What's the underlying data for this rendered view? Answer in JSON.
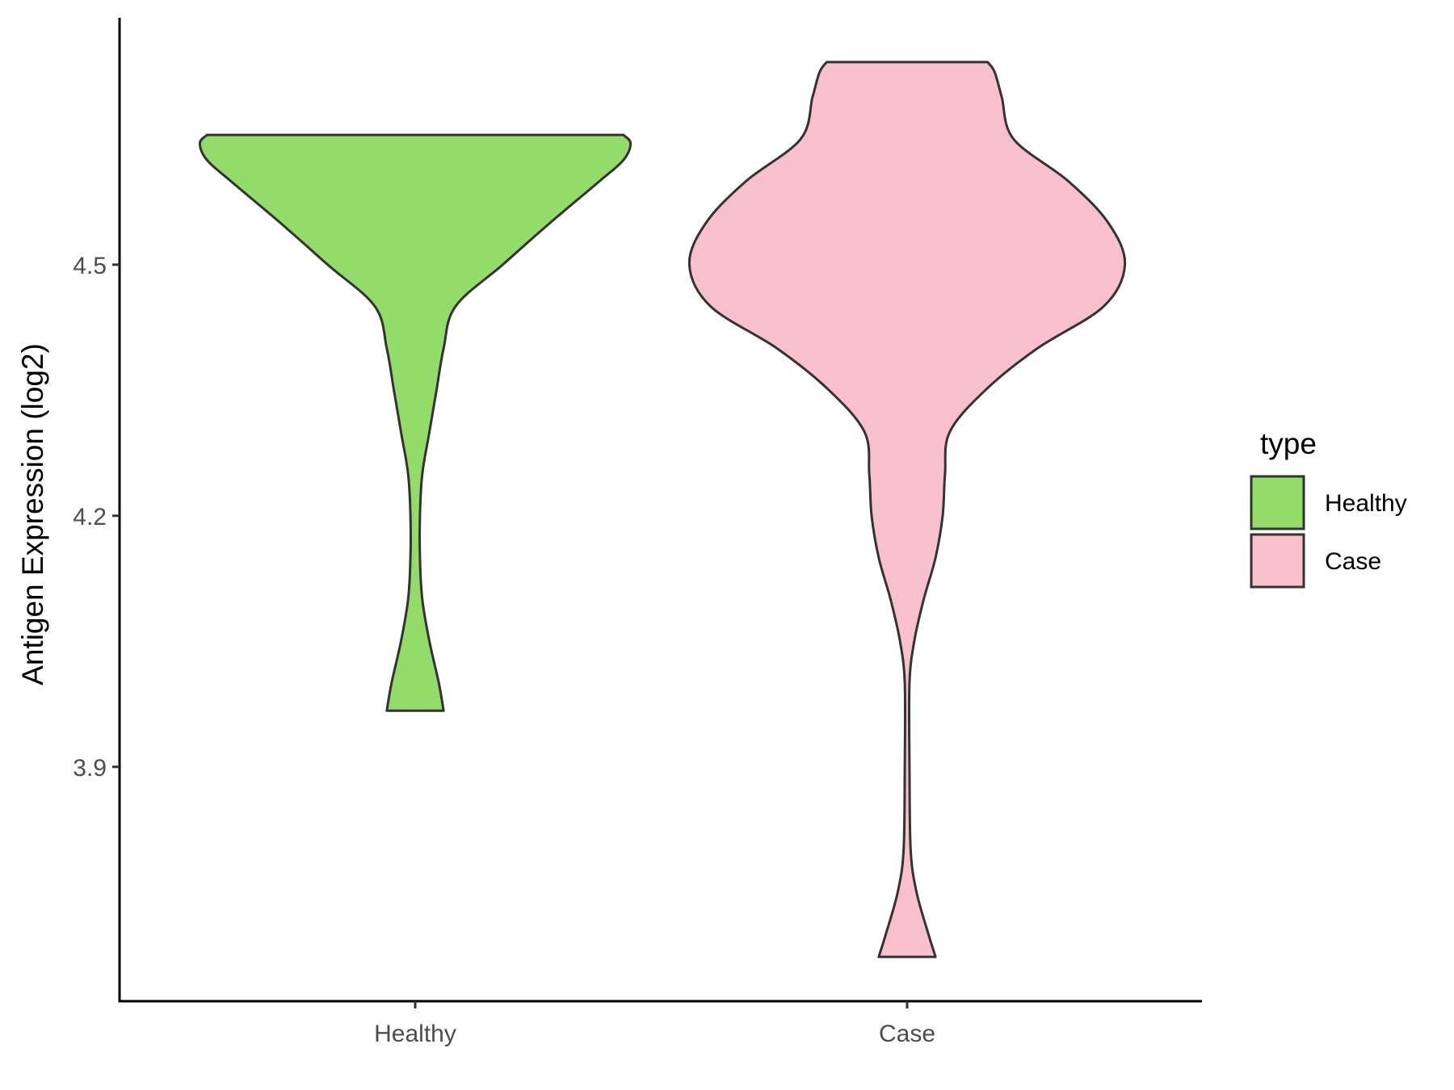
{
  "chart_data": {
    "type": "violin",
    "title": "",
    "xlabel": "",
    "ylabel": "Antigen Expression (log2)",
    "categories": [
      "Healthy",
      "Case"
    ],
    "ylim": [
      3.62,
      4.795
    ],
    "yticks": [
      3.9,
      4.2,
      4.5
    ],
    "ytick_labels": [
      "3.9",
      "4.2",
      "4.5"
    ],
    "grid": false,
    "legend": {
      "title": "type",
      "position": "right",
      "entries": [
        "Healthy",
        "Case"
      ]
    },
    "series": [
      {
        "name": "Healthy",
        "color": "#93dc6a",
        "min": 3.967,
        "max": 4.655,
        "density_profile": [
          [
            4.655,
            0.88
          ],
          [
            4.645,
            0.91
          ],
          [
            4.625,
            0.88
          ],
          [
            4.6,
            0.78
          ],
          [
            4.55,
            0.57
          ],
          [
            4.5,
            0.37
          ],
          [
            4.45,
            0.17
          ],
          [
            4.4,
            0.12
          ],
          [
            4.35,
            0.09
          ],
          [
            4.3,
            0.06
          ],
          [
            4.25,
            0.03
          ],
          [
            4.2,
            0.02
          ],
          [
            4.15,
            0.02
          ],
          [
            4.1,
            0.03
          ],
          [
            4.05,
            0.06
          ],
          [
            4.0,
            0.1
          ],
          [
            3.967,
            0.12
          ]
        ]
      },
      {
        "name": "Case",
        "color": "#f8c0cc",
        "min": 3.673,
        "max": 4.742,
        "density_profile": [
          [
            4.742,
            0.34
          ],
          [
            4.73,
            0.37
          ],
          [
            4.7,
            0.4
          ],
          [
            4.65,
            0.45
          ],
          [
            4.6,
            0.68
          ],
          [
            4.55,
            0.85
          ],
          [
            4.5,
            0.92
          ],
          [
            4.45,
            0.83
          ],
          [
            4.4,
            0.55
          ],
          [
            4.35,
            0.33
          ],
          [
            4.3,
            0.18
          ],
          [
            4.25,
            0.16
          ],
          [
            4.2,
            0.15
          ],
          [
            4.15,
            0.12
          ],
          [
            4.1,
            0.07
          ],
          [
            4.05,
            0.03
          ],
          [
            4.0,
            0.01
          ],
          [
            3.9,
            0.01
          ],
          [
            3.8,
            0.015
          ],
          [
            3.75,
            0.04
          ],
          [
            3.7,
            0.09
          ],
          [
            3.673,
            0.12
          ]
        ]
      }
    ]
  }
}
